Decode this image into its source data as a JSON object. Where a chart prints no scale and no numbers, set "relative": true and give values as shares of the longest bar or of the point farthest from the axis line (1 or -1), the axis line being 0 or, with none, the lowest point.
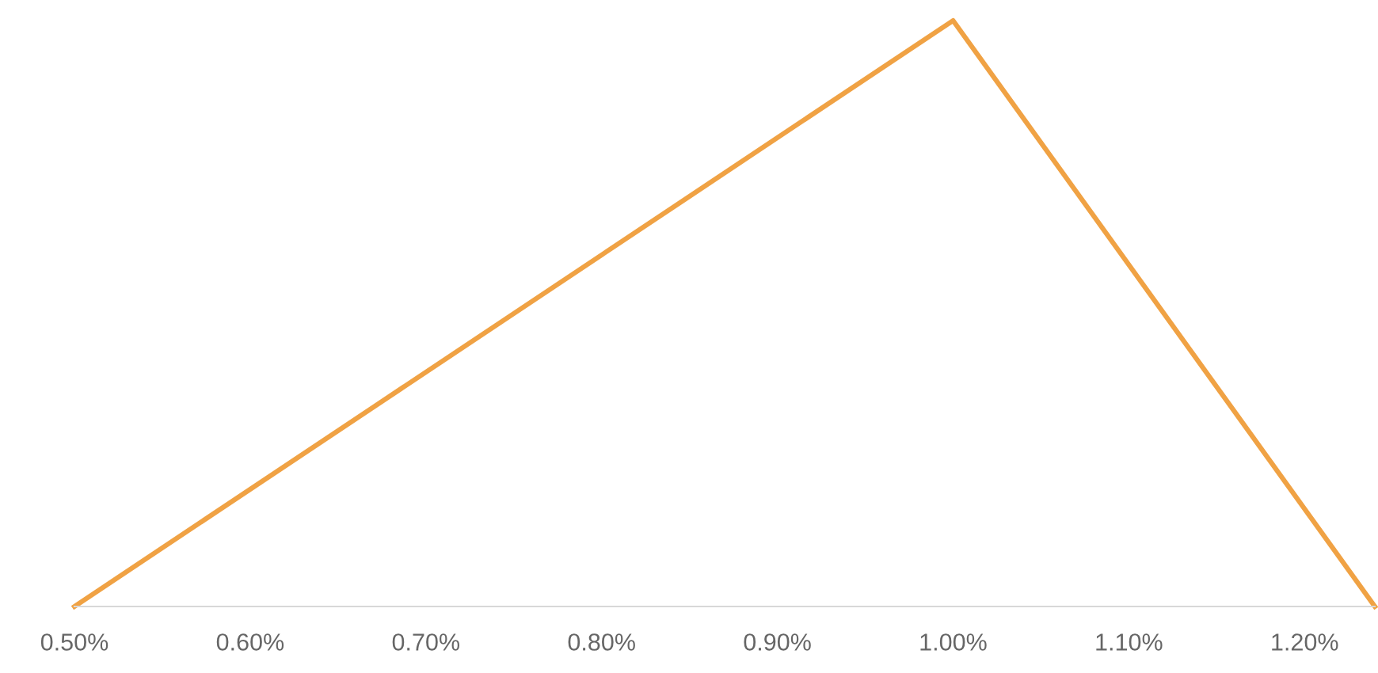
{
  "chart_data": {
    "type": "line",
    "relative": true,
    "x": [
      0.5,
      1.0,
      1.24
    ],
    "series": [
      {
        "color": "#f0a244",
        "values": [
          0,
          1,
          0
        ]
      }
    ],
    "xlim": [
      0.5,
      1.24
    ],
    "xticks": [
      {
        "value": 0.5,
        "label": "0.50%"
      },
      {
        "value": 0.6,
        "label": "0.60%"
      },
      {
        "value": 0.7,
        "label": "0.70%"
      },
      {
        "value": 0.8,
        "label": "0.80%"
      },
      {
        "value": 0.9,
        "label": "0.90%"
      },
      {
        "value": 1.0,
        "label": "1.00%"
      },
      {
        "value": 1.1,
        "label": "1.10%"
      },
      {
        "value": 1.2,
        "label": "1.20%"
      }
    ],
    "grid": false,
    "marker": "none",
    "line_style": "solid"
  }
}
